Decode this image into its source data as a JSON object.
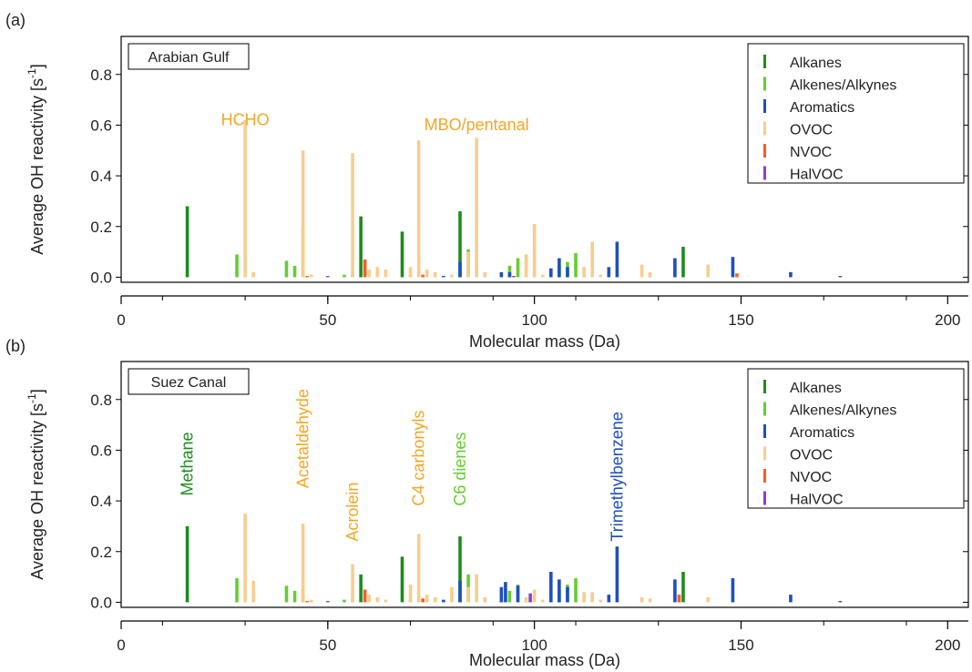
{
  "chart_data": [
    {
      "panel_label": "(a)",
      "box_label": "Arabian Gulf",
      "type": "bar",
      "xlabel": "Molecular mass (Da)",
      "ylabel": "Average OH reactivity [s",
      "ylabel_superscript": "-1",
      "ylabel_close": "]",
      "xlim": [
        0,
        205
      ],
      "ylim": [
        -0.02,
        0.95
      ],
      "xticks": [
        0,
        50,
        100,
        150,
        200
      ],
      "yticks": [
        0.0,
        0.2,
        0.4,
        0.6,
        0.8
      ],
      "ytick_labels": [
        "0.0",
        "0.2",
        "0.4",
        "0.6",
        "0.8"
      ],
      "legend_position": "top-right",
      "series": [
        {
          "name": "Alkanes",
          "color": "#1e8c1e",
          "x": [
            16,
            58,
            68,
            82,
            136
          ],
          "y": [
            0.28,
            0.24,
            0.18,
            0.26,
            0.12
          ]
        },
        {
          "name": "Alkenes/Alkynes",
          "color": "#66cc33",
          "x": [
            28,
            40,
            42,
            44,
            54,
            56,
            70,
            84,
            92,
            94,
            96,
            98,
            106,
            108,
            110,
            112
          ],
          "y": [
            0.09,
            0.065,
            0.045,
            0.2,
            0.01,
            0.01,
            0.01,
            0.11,
            0.005,
            0.045,
            0.075,
            0.005,
            0.045,
            0.06,
            0.095,
            0.005
          ]
        },
        {
          "name": "Aromatics",
          "color": "#1f4fbf",
          "x": [
            78,
            82,
            92,
            94,
            104,
            106,
            108,
            118,
            120,
            128,
            134,
            148,
            162,
            174
          ],
          "y": [
            0.005,
            0.06,
            0.02,
            0.02,
            0.035,
            0.075,
            0.04,
            0.04,
            0.14,
            0.015,
            0.075,
            0.08,
            0.02,
            0.005
          ]
        },
        {
          "name": "OVOC",
          "color": "#f8cd8d",
          "x": [
            30,
            32,
            44,
            46,
            56,
            60,
            62,
            64,
            70,
            72,
            74,
            76,
            80,
            84,
            86,
            88,
            98,
            100,
            102,
            112,
            114,
            116,
            126,
            128,
            142
          ],
          "y": [
            0.62,
            0.02,
            0.5,
            0.01,
            0.49,
            0.03,
            0.04,
            0.03,
            0.04,
            0.54,
            0.03,
            0.02,
            0.01,
            0.1,
            0.55,
            0.02,
            0.09,
            0.21,
            0.01,
            0.04,
            0.14,
            0.01,
            0.05,
            0.02,
            0.05
          ]
        },
        {
          "name": "NVOC",
          "color": "#ff5a1e",
          "x": [
            45,
            59,
            73,
            149
          ],
          "y": [
            0.005,
            0.07,
            0.01,
            0.015
          ]
        },
        {
          "name": "HalVOC",
          "color": "#8a3fd4",
          "x": [
            50,
            95
          ],
          "y": [
            0.005,
            0.005
          ]
        }
      ],
      "annotations": [
        {
          "text": "HCHO",
          "x": 30,
          "y": 0.6,
          "color": "#f5a623",
          "orientation": "horizontal"
        },
        {
          "text": "MBO/pentanal",
          "x": 86,
          "y": 0.58,
          "color": "#f5a623",
          "orientation": "horizontal"
        }
      ]
    },
    {
      "panel_label": "(b)",
      "box_label": "Suez Canal",
      "type": "bar",
      "xlabel": "Molecular mass (Da)",
      "ylabel": "Average OH reactivity [s",
      "ylabel_superscript": "-1",
      "ylabel_close": "]",
      "xlim": [
        0,
        205
      ],
      "ylim": [
        -0.02,
        0.95
      ],
      "xticks": [
        0,
        50,
        100,
        150,
        200
      ],
      "yticks": [
        0.0,
        0.2,
        0.4,
        0.6,
        0.8
      ],
      "ytick_labels": [
        "0.0",
        "0.2",
        "0.4",
        "0.6",
        "0.8"
      ],
      "legend_position": "top-right",
      "series": [
        {
          "name": "Alkanes",
          "color": "#1e8c1e",
          "x": [
            16,
            58,
            68,
            82,
            136
          ],
          "y": [
            0.3,
            0.11,
            0.18,
            0.26,
            0.12
          ]
        },
        {
          "name": "Alkenes/Alkynes",
          "color": "#66cc33",
          "x": [
            28,
            40,
            42,
            44,
            54,
            56,
            70,
            84,
            92,
            94,
            96,
            98,
            106,
            108,
            110,
            112
          ],
          "y": [
            0.095,
            0.065,
            0.045,
            0.055,
            0.01,
            0.01,
            0.01,
            0.11,
            0.005,
            0.045,
            0.07,
            0.005,
            0.05,
            0.07,
            0.095,
            0.005
          ]
        },
        {
          "name": "Aromatics",
          "color": "#1f4fbf",
          "x": [
            78,
            82,
            92,
            93,
            96,
            104,
            106,
            108,
            118,
            120,
            134,
            148,
            162,
            174
          ],
          "y": [
            0.01,
            0.085,
            0.06,
            0.08,
            0.065,
            0.12,
            0.09,
            0.06,
            0.03,
            0.22,
            0.09,
            0.095,
            0.03,
            0.005
          ]
        },
        {
          "name": "OVOC",
          "color": "#f8cd8d",
          "x": [
            30,
            32,
            44,
            46,
            56,
            60,
            62,
            64,
            70,
            72,
            74,
            76,
            80,
            84,
            86,
            88,
            98,
            100,
            102,
            112,
            114,
            116,
            126,
            128,
            142
          ],
          "y": [
            0.35,
            0.085,
            0.31,
            0.01,
            0.15,
            0.03,
            0.02,
            0.01,
            0.07,
            0.27,
            0.03,
            0.02,
            0.06,
            0.06,
            0.11,
            0.02,
            0.02,
            0.05,
            0.01,
            0.04,
            0.04,
            0.01,
            0.02,
            0.015,
            0.02
          ]
        },
        {
          "name": "NVOC",
          "color": "#ff5a1e",
          "x": [
            45,
            59,
            73,
            135
          ],
          "y": [
            0.005,
            0.05,
            0.015,
            0.03
          ]
        },
        {
          "name": "HalVOC",
          "color": "#8a3fd4",
          "x": [
            50,
            99
          ],
          "y": [
            0.005,
            0.035
          ]
        }
      ],
      "annotations": [
        {
          "text": "Methane",
          "x": 16,
          "y": 0.42,
          "color": "#1e8c1e",
          "orientation": "vertical"
        },
        {
          "text": "Acetaldehyde",
          "x": 44,
          "y": 0.45,
          "color": "#f5a623",
          "orientation": "vertical"
        },
        {
          "text": "Acrolein",
          "x": 56,
          "y": 0.24,
          "color": "#f5a623",
          "orientation": "vertical"
        },
        {
          "text": "C4 carbonyls",
          "x": 72,
          "y": 0.38,
          "color": "#f5a623",
          "orientation": "vertical"
        },
        {
          "text": "C6 dienes",
          "x": 82,
          "y": 0.38,
          "color": "#66cc33",
          "orientation": "vertical"
        },
        {
          "text": "Trimethylbenzene",
          "x": 120,
          "y": 0.24,
          "color": "#1f4fbf",
          "orientation": "vertical"
        }
      ]
    }
  ]
}
